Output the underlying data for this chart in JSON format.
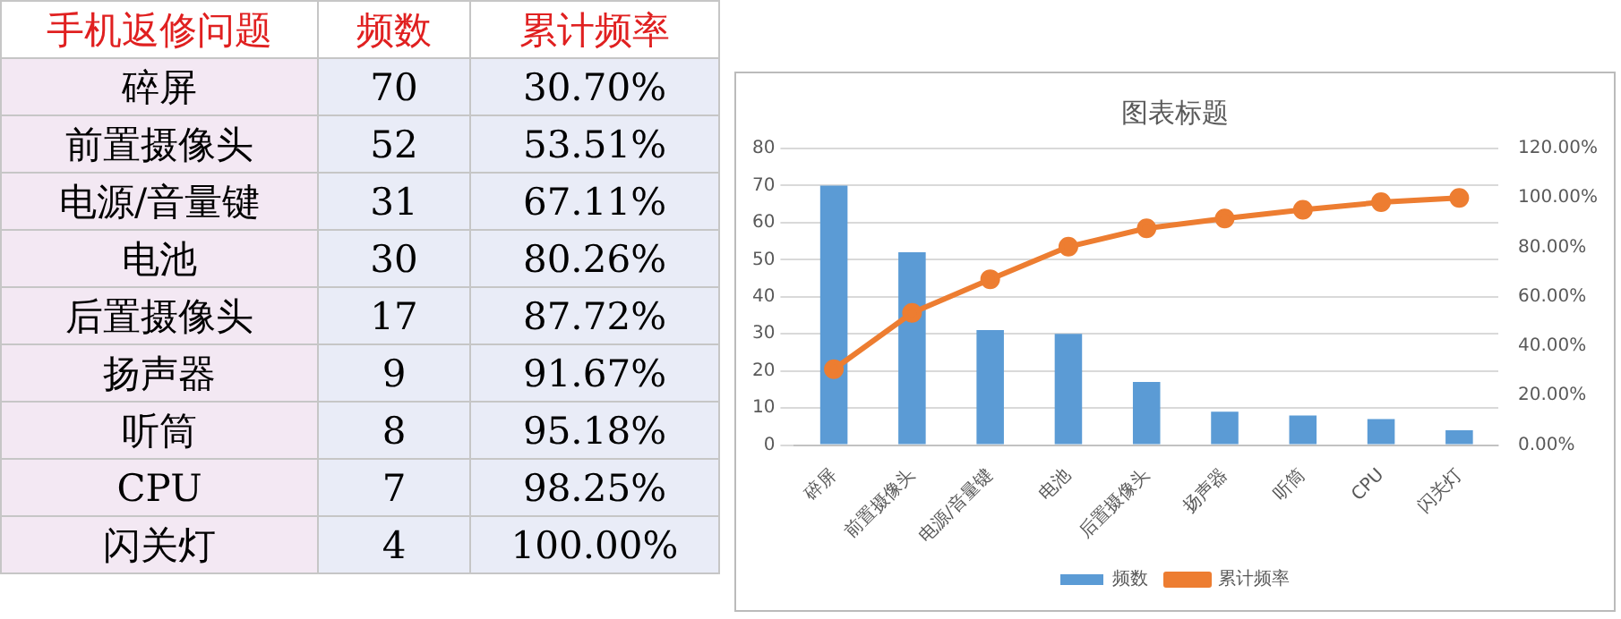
{
  "chart_data": [
    {
      "type": "other",
      "annotations": [
        "手机返修问题",
        "频数",
        "累计频率",
        "碎屏",
        "70",
        "30.70%",
        "前置摄像头",
        "52",
        "53.51%",
        "电源/音量键",
        "31",
        "67.11%",
        "电池",
        "30",
        "80.26%",
        "后置摄像头",
        "17",
        "87.72%",
        "扬声器",
        "9",
        "91.67%",
        "听筒",
        "8",
        "95.18%",
        "CPU",
        "7",
        "98.25%",
        "闪关灯",
        "4",
        "100.00%"
      ]
    },
    {
      "type": "bar",
      "title": "图表标题",
      "categories": [
        "碎屏",
        "前置摄像头",
        "电源/音量键",
        "电池",
        "后置摄像头",
        "扬声器",
        "听筒",
        "CPU",
        "闪关灯"
      ],
      "series": [
        {
          "name": "频数",
          "type": "bar",
          "color": "#5b9bd5",
          "values": [
            70,
            52,
            31,
            30,
            17,
            9,
            8,
            7,
            4
          ]
        },
        {
          "name": "累计频率",
          "type": "line",
          "axis": "y2",
          "color": "#ed7d31",
          "values": [
            30.7,
            53.51,
            67.11,
            80.26,
            87.72,
            91.67,
            95.18,
            98.25,
            100.0
          ]
        }
      ],
      "ylim": [
        0,
        80
      ],
      "yticks": [
        0,
        10,
        20,
        30,
        40,
        50,
        60,
        70,
        80
      ],
      "y2lim": [
        0,
        120
      ],
      "y2ticks": [
        {
          "value": 0,
          "label": "0.00%"
        },
        {
          "value": 20,
          "label": "20.00%"
        },
        {
          "value": 40,
          "label": "40.00%"
        },
        {
          "value": 60,
          "label": "60.00%"
        },
        {
          "value": 80,
          "label": "80.00%"
        },
        {
          "value": 100,
          "label": "100.00%"
        },
        {
          "value": 120,
          "label": "120.00%"
        }
      ],
      "grid": "y",
      "legend": "bottom",
      "marker": "circle"
    }
  ]
}
